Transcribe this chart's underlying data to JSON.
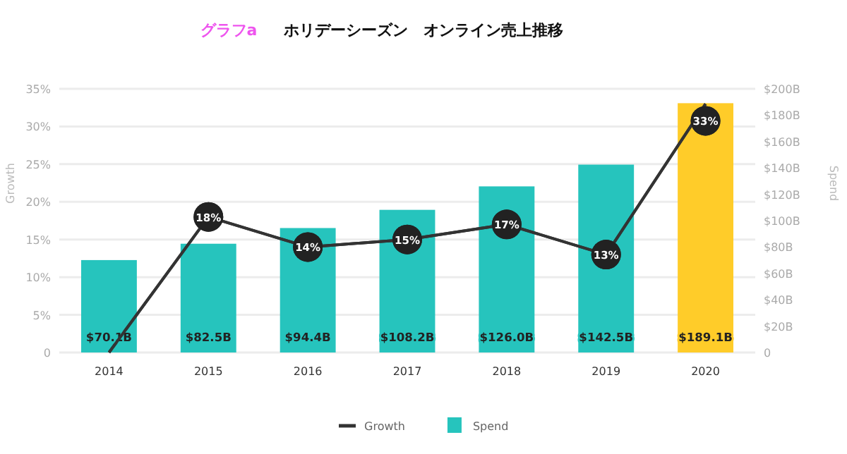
{
  "chart_data": {
    "type": "bar",
    "title": "ホリデーシーズン　オンライン売上推移",
    "annotations": [
      "グラフa"
    ],
    "categories": [
      "2014",
      "2015",
      "2016",
      "2017",
      "2018",
      "2019",
      "2020"
    ],
    "series": [
      {
        "name": "Growth",
        "type": "line",
        "axis": "y",
        "color": "#333333",
        "marker": "circle",
        "values": [
          0,
          18,
          14,
          15,
          17,
          13,
          33
        ],
        "value_labels": [
          null,
          "18%",
          "14%",
          "15%",
          "17%",
          "13%",
          "33%"
        ]
      },
      {
        "name": "Spend",
        "axis": "y2",
        "colors": [
          "#26c4bd",
          "#26c4bd",
          "#26c4bd",
          "#26c4bd",
          "#26c4bd",
          "#26c4bd",
          "#ffcc29"
        ],
        "values": [
          70.1,
          82.5,
          94.4,
          108.2,
          126.0,
          142.5,
          189.1
        ],
        "value_labels": [
          "$70.1B",
          "$82.5B",
          "$94.4B",
          "$108.2B",
          "$126.0B",
          "$142.5B",
          "$189.1B"
        ]
      }
    ],
    "ylabel": "Growth",
    "y2label": "Spend",
    "ylim": [
      0,
      35
    ],
    "yticks": [
      0,
      {
        "value": 5,
        "label": "5%"
      },
      {
        "value": 10,
        "label": "10%"
      },
      {
        "value": 15,
        "label": "15%"
      },
      {
        "value": 20,
        "label": "20%"
      },
      {
        "value": 25,
        "label": "25%"
      },
      {
        "value": 30,
        "label": "30%"
      },
      {
        "value": 35,
        "label": "35%"
      }
    ],
    "y2lim": [
      0,
      200
    ],
    "y2ticks": [
      0,
      {
        "value": 20,
        "label": "$20B"
      },
      {
        "value": 40,
        "label": "$40B"
      },
      {
        "value": 60,
        "label": "$60B"
      },
      {
        "value": 80,
        "label": "$80B"
      },
      {
        "value": 100,
        "label": "$100B"
      },
      {
        "value": 120,
        "label": "$120B"
      },
      {
        "value": 140,
        "label": "$140B"
      },
      {
        "value": 160,
        "label": "$160B"
      },
      {
        "value": 180,
        "label": "$180B"
      },
      {
        "value": 200,
        "label": "$200B"
      }
    ],
    "grid": "y",
    "legend": "bottom"
  }
}
